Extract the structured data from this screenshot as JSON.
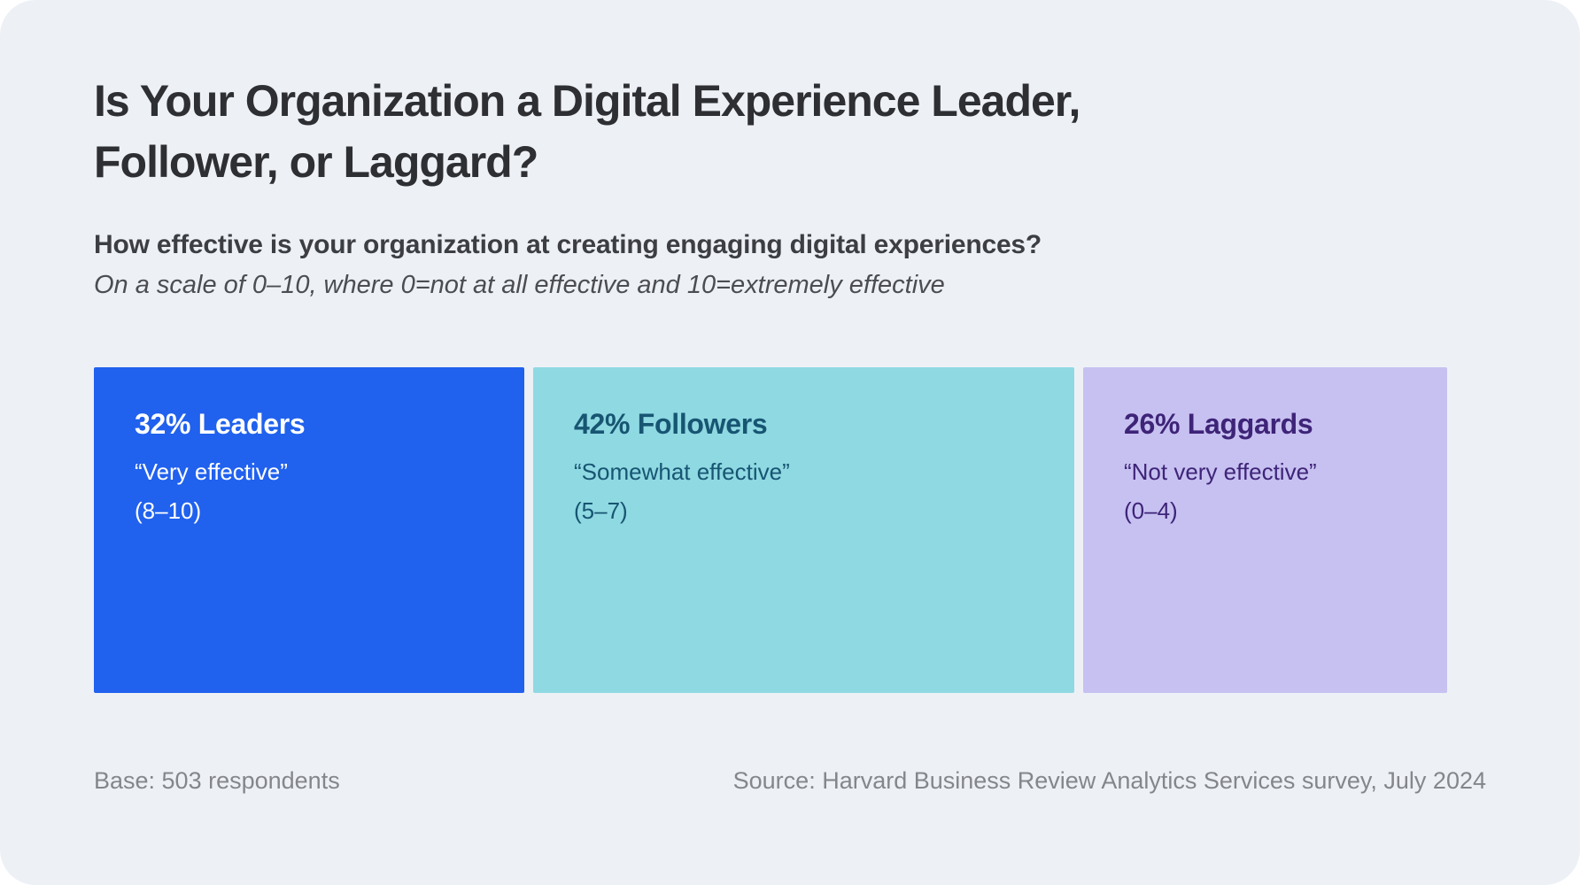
{
  "header": {
    "title_line1": "Is Your Organization a Digital Experience Leader,",
    "title_line2": "Follower, or Laggard?",
    "question": "How effective is your organization at creating engaging digital experiences?",
    "scale_note": "On a scale of 0–10, where 0=not at all effective and 10=extremely effective"
  },
  "chart_data": {
    "type": "bar",
    "title": "Is Your Organization a Digital Experience Leader, Follower, or Laggard?",
    "subtitle": "How effective is your organization at creating engaging digital experiences?",
    "scale_note": "On a scale of 0–10, where 0=not at all effective and 10=extremely effective",
    "categories": [
      "Leaders",
      "Followers",
      "Laggards"
    ],
    "values": [
      32,
      42,
      26
    ],
    "unit": "%",
    "layout": "proportional horizontal segments, widths equal to percentage values",
    "segments": [
      {
        "heading": "32% Leaders",
        "quote": "“Very effective”",
        "range": "(8–10)",
        "value": 32,
        "bg": "#2061ee",
        "fg": "#ffffff"
      },
      {
        "heading": "42% Followers",
        "quote": "“Somewhat effective”",
        "range": "(5–7)",
        "value": 42,
        "bg": "#8fd9e2",
        "fg": "#175572"
      },
      {
        "heading": "26% Laggards",
        "quote": "“Not very effective”",
        "range": "(0–4)",
        "value": 26,
        "bg": "#c7c1f1",
        "fg": "#3e2478"
      }
    ]
  },
  "footer": {
    "base": "Base: 503 respondents",
    "source": "Source: Harvard Business Review Analytics Services survey, July 2024"
  },
  "colors": {
    "card_background": "#edf1f6",
    "page_background": "#ffffff",
    "title_text": "#2e2f33",
    "footer_text": "#84868b"
  }
}
